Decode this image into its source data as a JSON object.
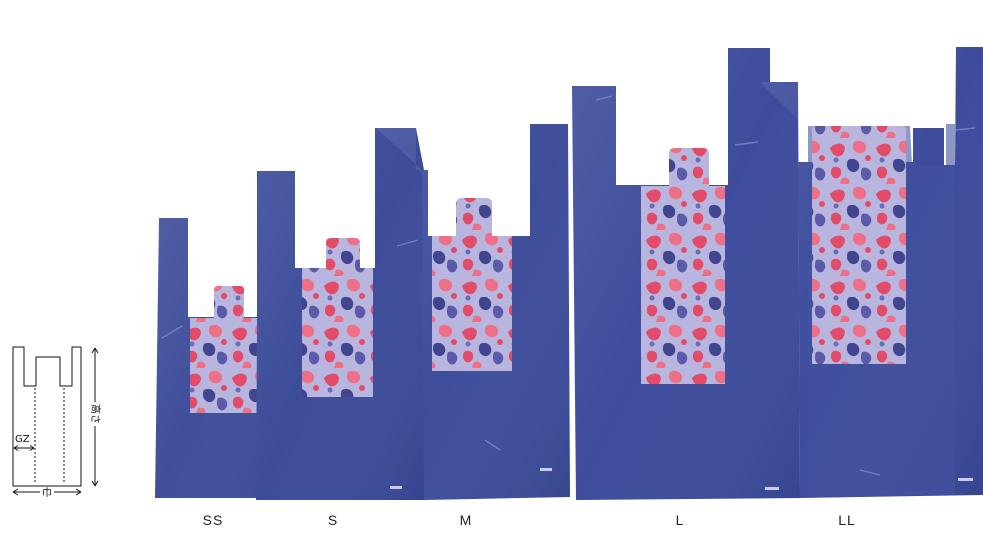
{
  "colors": {
    "bag_blue": "#3d4d9a",
    "bag_blue_light": "#5a6bb6",
    "print_red": "#e8506a",
    "print_lavender": "#b3b2dc",
    "print_navy": "#3b3f86"
  },
  "diagram": {
    "gusset_label": "GZ",
    "width_label": "巾",
    "height_label": "高さ"
  },
  "sizes": [
    {
      "id": "ss",
      "label": "SS"
    },
    {
      "id": "s",
      "label": "S"
    },
    {
      "id": "m",
      "label": "M"
    },
    {
      "id": "l",
      "label": "L"
    },
    {
      "id": "ll",
      "label": "LL"
    }
  ]
}
